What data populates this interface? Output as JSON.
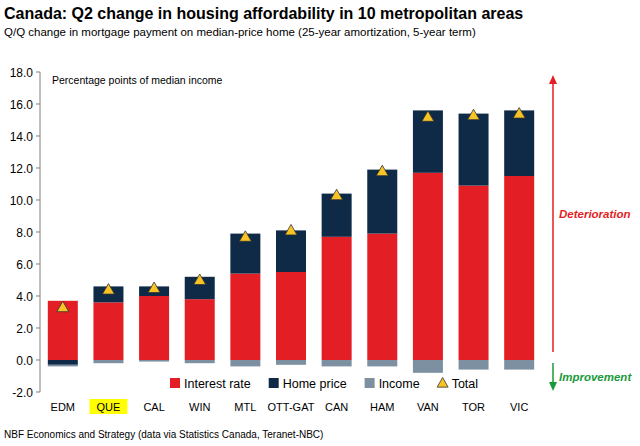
{
  "chart_data": {
    "type": "bar",
    "stacked": true,
    "title": "Canada: Q2 change in housing affordability in 10 metropolitan areas",
    "subtitle": "Q/Q change in mortgage payment on median-price home (25-year amortization, 5-year term)",
    "y_label": "Percentage points of median income",
    "annotations": [
      "Deterioration",
      "Improvement"
    ],
    "source": "NBF Economics and Strategy (data via Statistics Canada, Teranet-NBC)",
    "categories": [
      "EDM",
      "QUE",
      "CAL",
      "WIN",
      "MTL",
      "OTT-GAT",
      "CAN",
      "HAM",
      "VAN",
      "TOR",
      "VIC"
    ],
    "series": [
      {
        "name": "Interest rate",
        "color": "#e31e24",
        "values": [
          3.7,
          3.6,
          4.0,
          3.8,
          5.4,
          5.5,
          7.7,
          7.9,
          11.7,
          10.9,
          11.5
        ]
      },
      {
        "name": "Home price",
        "color": "#0f2a47",
        "values": [
          -0.3,
          1.0,
          0.6,
          1.4,
          2.5,
          2.6,
          2.7,
          4.0,
          3.9,
          4.5,
          4.1
        ]
      },
      {
        "name": "Income",
        "color": "#7d90a1",
        "values": [
          -0.1,
          -0.2,
          -0.1,
          -0.2,
          -0.4,
          -0.3,
          -0.4,
          -0.4,
          -0.8,
          -0.6,
          -0.6
        ]
      },
      {
        "name": "Total",
        "type": "scatter",
        "marker": "triangle",
        "color": "#f7c325",
        "values": [
          3.3,
          4.4,
          4.5,
          5.0,
          7.7,
          8.1,
          10.3,
          11.8,
          15.2,
          15.3,
          15.4
        ]
      }
    ],
    "ylim": [
      -2,
      18
    ],
    "yticks": [
      {
        "value": -2,
        "label": "-2.0"
      },
      {
        "value": 0,
        "label": "0.0"
      },
      {
        "value": 2,
        "label": "2.0"
      },
      {
        "value": 4,
        "label": "4.0"
      },
      {
        "value": 6,
        "label": "6.0"
      },
      {
        "value": 8,
        "label": "8.0"
      },
      {
        "value": 10,
        "label": "10.0"
      },
      {
        "value": 12,
        "label": "12.0"
      },
      {
        "value": 14,
        "label": "14.0"
      },
      {
        "value": 16,
        "label": "16.0"
      },
      {
        "value": 18,
        "label": "18.0"
      }
    ],
    "grid": false,
    "legend": "bottom"
  }
}
